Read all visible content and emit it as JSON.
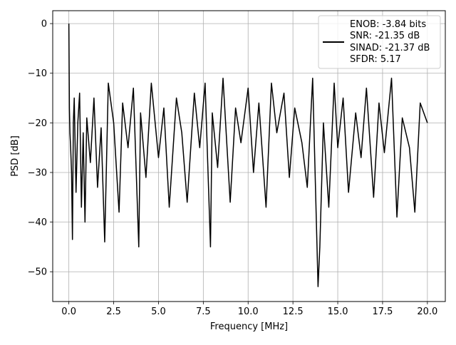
{
  "chart_data": {
    "type": "line",
    "title": "",
    "xlabel": "Frequency [MHz]",
    "ylabel": "PSD [dB]",
    "xlim": [
      -0.9,
      21.0
    ],
    "ylim": [
      -56,
      2.6
    ],
    "xticks": [
      0.0,
      2.5,
      5.0,
      7.5,
      10.0,
      12.5,
      15.0,
      17.5,
      20.0
    ],
    "xtick_labels": [
      "0.0",
      "2.5",
      "5.0",
      "7.5",
      "10.0",
      "12.5",
      "15.0",
      "17.5",
      "20.0"
    ],
    "yticks": [
      0,
      -10,
      -20,
      -30,
      -40,
      -50
    ],
    "ytick_labels": [
      "0",
      "−10",
      "−20",
      "−30",
      "−40",
      "−50"
    ],
    "grid": true,
    "legend_position": "top-right",
    "line_color": "#000000",
    "legend": [
      "ENOB: -3.84 bits",
      "SNR: -21.35 dB",
      "SINAD: -21.37 dB",
      "SFDR: 5.17"
    ],
    "series": [
      {
        "x": [
          0.0,
          0.03,
          0.06,
          0.1,
          0.15,
          0.2,
          0.25,
          0.3,
          0.4,
          0.5,
          0.6,
          0.7,
          0.8,
          0.9,
          1.0,
          1.2,
          1.4,
          1.6,
          1.8,
          2.0,
          2.2,
          2.5,
          2.8,
          3.0,
          3.3,
          3.6,
          3.9,
          4.0,
          4.3,
          4.6,
          5.0,
          5.3,
          5.6,
          6.0,
          6.3,
          6.6,
          7.0,
          7.3,
          7.6,
          7.9,
          8.0,
          8.3,
          8.6,
          9.0,
          9.3,
          9.6,
          10.0,
          10.3,
          10.6,
          11.0,
          11.3,
          11.6,
          12.0,
          12.3,
          12.6,
          13.0,
          13.3,
          13.6,
          13.9,
          14.0,
          14.2,
          14.5,
          14.8,
          15.0,
          15.3,
          15.6,
          16.0,
          16.3,
          16.6,
          17.0,
          17.3,
          17.6,
          18.0,
          18.3,
          18.6,
          19.0,
          19.3,
          19.6,
          20.0
        ],
        "y": [
          0.0,
          -17,
          -22,
          -25,
          -30,
          -43.5,
          -20,
          -15,
          -34,
          -20,
          -14,
          -37,
          -22,
          -40,
          -19,
          -28,
          -15,
          -33,
          -21,
          -44,
          -12,
          -20,
          -38,
          -16,
          -25,
          -13,
          -45,
          -18,
          -31,
          -12,
          -27,
          -17,
          -37,
          -15,
          -22,
          -36,
          -14,
          -25,
          -12,
          -45,
          -18,
          -29,
          -11,
          -36,
          -17,
          -24,
          -13,
          -30,
          -16,
          -37,
          -12,
          -22,
          -14,
          -31,
          -17,
          -24,
          -33,
          -11,
          -53,
          -45,
          -20,
          -37,
          -12,
          -25,
          -15,
          -34,
          -18,
          -27,
          -13,
          -35,
          -16,
          -26,
          -11,
          -39,
          -19,
          -25,
          -38,
          -16,
          -20
        ]
      }
    ]
  }
}
